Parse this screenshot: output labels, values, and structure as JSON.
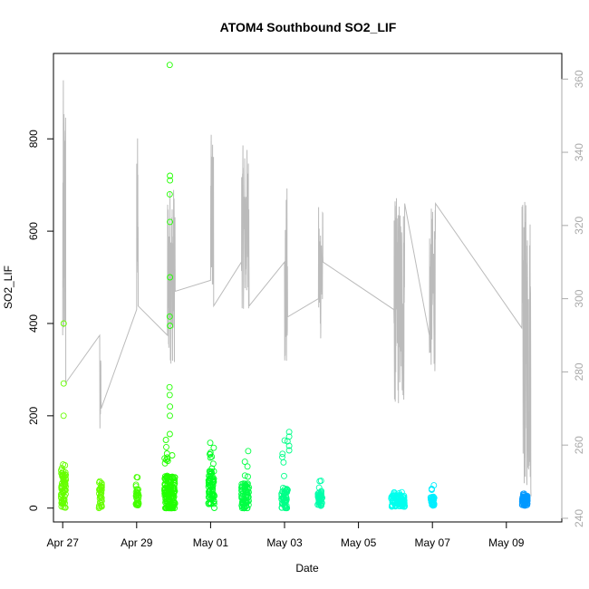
{
  "chart_data": {
    "type": "scatter",
    "title": "ATOM4 Southbound SO2_LIF",
    "xlabel": "Date",
    "ylabel": "SO2_LIF",
    "x_axis": {
      "range": [
        "2018-04-26T18:00",
        "2018-05-10T12:00"
      ],
      "ticks": [
        {
          "value": "2018-04-27",
          "label": "Apr 27"
        },
        {
          "value": "2018-04-29",
          "label": "Apr 29"
        },
        {
          "value": "2018-05-01",
          "label": "May 01"
        },
        {
          "value": "2018-05-03",
          "label": "May 03"
        },
        {
          "value": "2018-05-05",
          "label": "May 05"
        },
        {
          "value": "2018-05-07",
          "label": "May 07"
        },
        {
          "value": "2018-05-09",
          "label": "May 09"
        }
      ]
    },
    "y_left": {
      "range": [
        -30,
        985
      ],
      "ticks": [
        0,
        200,
        400,
        600,
        800
      ],
      "tick_labels": [
        "0",
        "200",
        "400",
        "600",
        "800"
      ]
    },
    "y_right": {
      "range": [
        239,
        367
      ],
      "ticks": [
        240,
        260,
        280,
        300,
        320,
        340,
        360
      ],
      "tick_labels": [
        "240",
        "260",
        "280",
        "300",
        "320",
        "340",
        "360"
      ],
      "color": "#aaaaaa"
    },
    "grid": false,
    "legend": "none",
    "marker": "open-circle",
    "line_series_color": "#bbbbbb",
    "flights": [
      {
        "center": "2018-04-27T00:30",
        "width_h": 3.0,
        "color": "#66ff00",
        "base": 40,
        "spread": 40,
        "max": 110,
        "count": 70,
        "outliers": [
          {
            "x": "2018-04-27T00:40",
            "y": 400
          },
          {
            "x": "2018-04-27T00:40",
            "y": 270
          },
          {
            "x": "2018-04-27T00:35",
            "y": 200
          }
        ]
      },
      {
        "center": "2018-04-28T00:30",
        "width_h": 2.0,
        "color": "#66ff00",
        "base": 30,
        "spread": 30,
        "max": 130,
        "count": 35,
        "outliers": []
      },
      {
        "center": "2018-04-29T00:30",
        "width_h": 2.0,
        "color": "#44ff00",
        "base": 25,
        "spread": 20,
        "max": 105,
        "count": 35,
        "outliers": []
      },
      {
        "center": "2018-04-29T21:30",
        "width_h": 7.0,
        "color": "#22ff00",
        "base": 30,
        "spread": 40,
        "max": 170,
        "count": 160,
        "outliers": [
          {
            "x": "2018-04-29T21:30",
            "y": 960
          },
          {
            "x": "2018-04-29T21:40",
            "y": 720
          },
          {
            "x": "2018-04-29T21:40",
            "y": 710
          },
          {
            "x": "2018-04-29T21:30",
            "y": 680
          },
          {
            "x": "2018-04-29T21:40",
            "y": 620
          },
          {
            "x": "2018-04-29T21:40",
            "y": 500
          },
          {
            "x": "2018-04-29T21:30",
            "y": 415
          },
          {
            "x": "2018-04-29T21:40",
            "y": 395
          },
          {
            "x": "2018-04-29T21:20",
            "y": 262
          },
          {
            "x": "2018-04-29T21:30",
            "y": 245
          },
          {
            "x": "2018-04-29T21:40",
            "y": 220
          },
          {
            "x": "2018-04-29T21:35",
            "y": 200
          }
        ]
      },
      {
        "center": "2018-05-01T00:30",
        "width_h": 4.0,
        "color": "#00ff22",
        "base": 40,
        "spread": 40,
        "max": 150,
        "count": 80,
        "outliers": []
      },
      {
        "center": "2018-05-01T22:30",
        "width_h": 5.0,
        "color": "#00ff44",
        "base": 25,
        "spread": 30,
        "max": 125,
        "count": 80,
        "outliers": []
      },
      {
        "center": "2018-05-03T00:00",
        "width_h": 4.0,
        "color": "#00ff88",
        "base": 20,
        "spread": 25,
        "max": 165,
        "count": 60,
        "outliers": [
          {
            "x": "2018-05-03T03:00",
            "y": 165
          },
          {
            "x": "2018-05-03T03:00",
            "y": 155
          },
          {
            "x": "2018-05-03T03:00",
            "y": 135
          },
          {
            "x": "2018-05-03T03:00",
            "y": 125
          }
        ]
      },
      {
        "center": "2018-05-03T23:00",
        "width_h": 3.0,
        "color": "#00ffaa",
        "base": 20,
        "spread": 15,
        "max": 65,
        "count": 45,
        "outliers": []
      },
      {
        "center": "2018-05-06T01:30",
        "width_h": 9.0,
        "color": "#00ffee",
        "base": 15,
        "spread": 12,
        "max": 35,
        "count": 110,
        "outliers": []
      },
      {
        "center": "2018-05-07T00:00",
        "width_h": 2.5,
        "color": "#00eeff",
        "base": 15,
        "spread": 10,
        "max": 55,
        "count": 40,
        "outliers": []
      },
      {
        "center": "2018-05-09T12:00",
        "width_h": 3.5,
        "color": "#0099ff",
        "base": 15,
        "spread": 10,
        "max": 32,
        "count": 70,
        "outliers": []
      }
    ]
  }
}
